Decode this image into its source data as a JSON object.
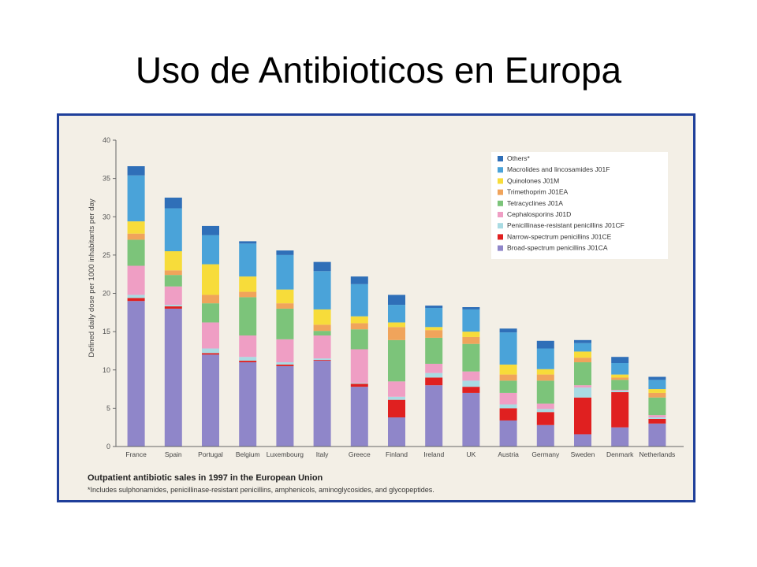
{
  "slide": {
    "title": "Uso de Antibioticos en Europa"
  },
  "colors": {
    "frame": "#1f3f9a",
    "paper": "#f3efe6",
    "legend_bg": "#ffffff"
  },
  "chart_data": {
    "type": "bar",
    "stacked": true,
    "title": "Outpatient antibiotic sales in 1997 in the European Union",
    "footnote": "*Includes sulphonamides, penicillinase-resistant penicillins, amphenicols, aminoglycosides, and glycopeptides.",
    "xlabel": "",
    "ylabel": "Defined daily dose per 1000 inhabitants per day",
    "ylim": [
      0,
      40
    ],
    "yticks": [
      0,
      5,
      10,
      15,
      20,
      25,
      30,
      35,
      40
    ],
    "grid": false,
    "legend_position": "top-right",
    "categories": [
      "France",
      "Spain",
      "Portugal",
      "Belgium",
      "Luxembourg",
      "Italy",
      "Greece",
      "Finland",
      "Ireland",
      "UK",
      "Austria",
      "Germany",
      "Sweden",
      "Denmark",
      "Netherlands"
    ],
    "series": [
      {
        "name": "Broad-spectrum penicillins J01CA",
        "color": "#8f86c9",
        "values": [
          19,
          18,
          12,
          11,
          10.5,
          11.2,
          7.8,
          3.8,
          8,
          7,
          3.4,
          2.8,
          1.6,
          2.5,
          3
        ]
      },
      {
        "name": "Narrow-spectrum penicillins J01CE",
        "color": "#e02020",
        "values": [
          0.4,
          0.3,
          0.2,
          0.2,
          0.2,
          0.1,
          0.4,
          2.3,
          1,
          0.8,
          1.6,
          1.7,
          4.8,
          4.6,
          0.6
        ]
      },
      {
        "name": "Penicillinase-resistant penicillins J01CF",
        "color": "#a9dbe3",
        "values": [
          0.4,
          0.2,
          0.6,
          0.5,
          0.3,
          0.2,
          0.1,
          0.4,
          0.6,
          0.8,
          0.5,
          0.4,
          1.3,
          0.2,
          0.2
        ]
      },
      {
        "name": "Cephalosporins J01D",
        "color": "#ef9ec4",
        "values": [
          3.8,
          2.4,
          3.4,
          2.8,
          3,
          3,
          4.4,
          2,
          1.2,
          1.2,
          1.5,
          0.7,
          0.3,
          0.1,
          0.3
        ]
      },
      {
        "name": "Tetracyclines J01A",
        "color": "#7cc47a",
        "values": [
          3.4,
          1.5,
          2.5,
          5,
          4,
          0.6,
          2.6,
          5.4,
          3.4,
          3.6,
          1.6,
          3,
          3,
          1.3,
          2.3
        ]
      },
      {
        "name": "Trimethoprim J01EA",
        "color": "#f0a45b",
        "values": [
          0.8,
          0.6,
          1.1,
          0.7,
          0.7,
          0.8,
          0.8,
          1.7,
          1,
          0.9,
          0.8,
          0.8,
          0.6,
          0.3,
          0.6
        ]
      },
      {
        "name": "Quinolones J01M",
        "color": "#f7dc3a",
        "values": [
          1.6,
          2.5,
          4,
          2,
          1.8,
          2,
          0.9,
          0.6,
          0.4,
          0.7,
          1.3,
          0.7,
          0.8,
          0.4,
          0.5
        ]
      },
      {
        "name": "Macrolides and lincosamides J01F",
        "color": "#4aa3d9",
        "values": [
          6,
          5.6,
          3.8,
          4.3,
          4.5,
          5,
          4.2,
          2.3,
          2.5,
          2.9,
          4.2,
          2.7,
          1.1,
          1.5,
          1.2
        ]
      },
      {
        "name": "Others*",
        "color": "#2f6fb8",
        "values": [
          1.2,
          1.4,
          1.2,
          0.3,
          0.6,
          1.2,
          1.0,
          1.3,
          0.3,
          0.3,
          0.5,
          1.0,
          0.4,
          0.8,
          0.4
        ]
      }
    ]
  }
}
